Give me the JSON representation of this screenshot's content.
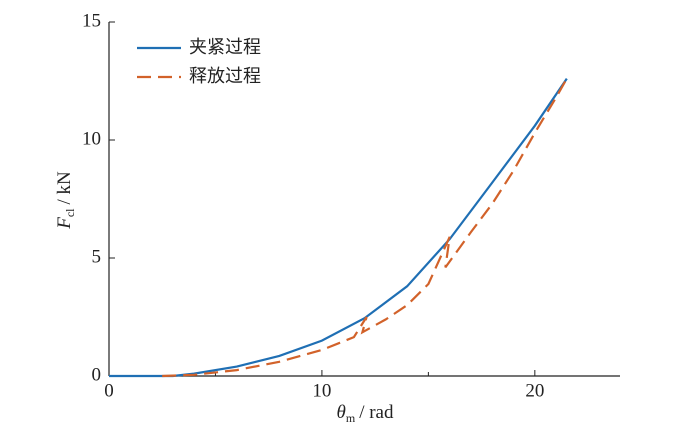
{
  "chart_data": {
    "type": "line",
    "xlabel_symbol": "θ",
    "xlabel_subscript": "m",
    "xlabel_unit": "/ rad",
    "ylabel_symbol": "F",
    "ylabel_subscript": "cl",
    "ylabel_unit": "/ kN",
    "xlim": [
      0,
      24
    ],
    "xticks": [
      0,
      10,
      20
    ],
    "xminor": [
      5,
      15
    ],
    "ylim": [
      0,
      15
    ],
    "yticks": [
      0,
      5,
      10,
      15
    ],
    "legend": "upper left",
    "series": [
      {
        "name": "夹紧过程",
        "color": "#1f6fb4",
        "dash": "solid",
        "x": [
          0,
          3,
          4,
          6,
          8,
          10,
          12,
          14,
          16,
          18,
          20,
          21.5
        ],
        "values": [
          0,
          0,
          0.1,
          0.4,
          0.85,
          1.5,
          2.45,
          3.8,
          5.8,
          8.2,
          10.6,
          12.6
        ]
      },
      {
        "name": "释放过程",
        "color": "#d2622a",
        "dash": "dashed",
        "x": [
          2.5,
          4,
          6,
          8,
          10,
          11.5,
          12.1,
          11.9,
          13,
          14,
          15,
          16,
          15.8,
          17,
          18,
          19,
          20,
          21,
          21.5
        ],
        "values": [
          0,
          0.05,
          0.25,
          0.6,
          1.1,
          1.65,
          2.5,
          1.85,
          2.4,
          3.0,
          3.9,
          5.9,
          4.6,
          6.1,
          7.3,
          8.7,
          10.3,
          11.8,
          12.6
        ]
      }
    ]
  }
}
